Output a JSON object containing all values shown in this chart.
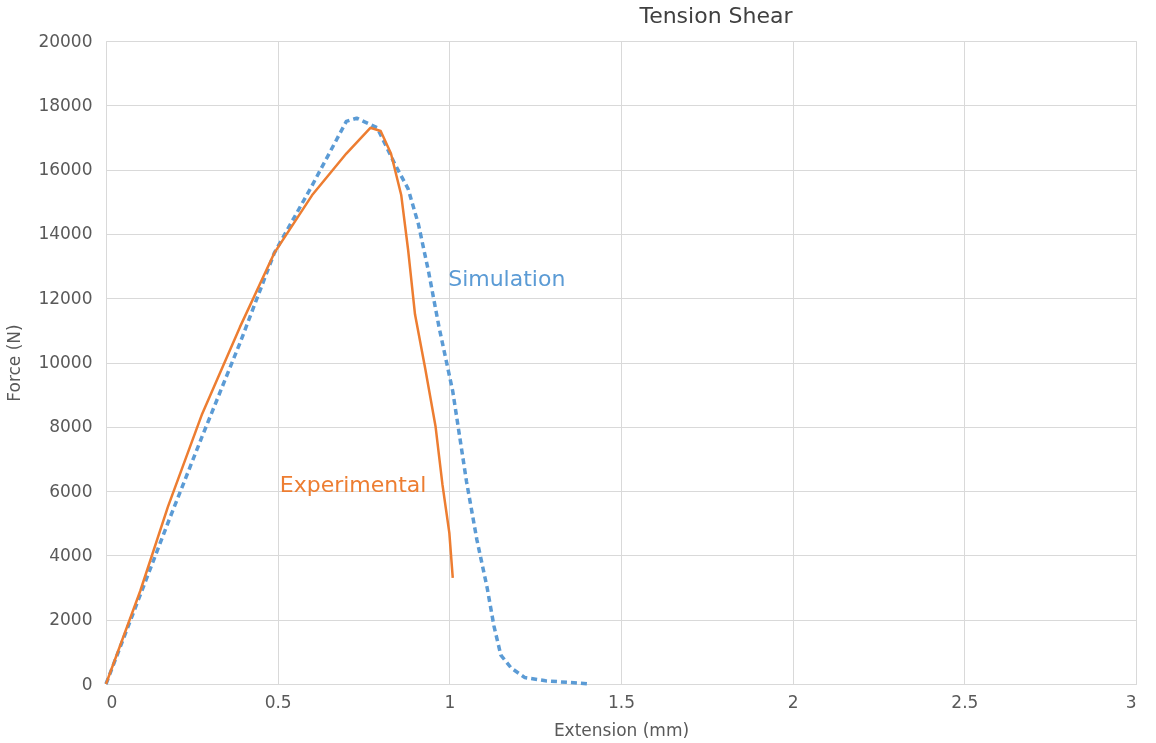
{
  "chart_data": {
    "type": "line",
    "title": "Tension Shear",
    "xlabel": "Extension (mm)",
    "ylabel": "Force (N)",
    "xlim": [
      0,
      3
    ],
    "xticks": [
      0,
      0.5,
      1,
      1.5,
      2,
      2.5,
      3
    ],
    "ylim": [
      0,
      20000
    ],
    "yticks": [
      0,
      2000,
      4000,
      6000,
      8000,
      10000,
      12000,
      14000,
      16000,
      18000,
      20000
    ],
    "grid": true,
    "series": [
      {
        "color": "#5b9bd5",
        "line_style": "dashed",
        "x": [
          0,
          0.09,
          0.18,
          0.28,
          0.39,
          0.49,
          0.6,
          0.7,
          0.73,
          0.79,
          0.84,
          0.88,
          0.91,
          0.94,
          0.97,
          1.01,
          1.05,
          1.08,
          1.11,
          1.13,
          1.15,
          1.18,
          1.22,
          1.28,
          1.41
        ],
        "values": [
          0,
          2500,
          5000,
          7700,
          10600,
          13400,
          15500,
          17500,
          17600,
          17300,
          16200,
          15400,
          14300,
          12800,
          11100,
          9100,
          6300,
          4500,
          3000,
          1800,
          900,
          500,
          200,
          100,
          0
        ]
      },
      {
        "color": "#ed7d31",
        "line_style": "solid",
        "x": [
          0,
          0.1,
          0.18,
          0.28,
          0.39,
          0.49,
          0.6,
          0.7,
          0.77,
          0.8,
          0.83,
          0.86,
          0.88,
          0.9,
          0.93,
          0.96,
          0.98,
          1.0,
          1.01
        ],
        "values": [
          0,
          2900,
          5500,
          8400,
          11100,
          13400,
          15200,
          16500,
          17300,
          17200,
          16500,
          15200,
          13500,
          11500,
          9800,
          8000,
          6200,
          4700,
          3300
        ]
      }
    ],
    "annotations": [
      {
        "text": "Simulation",
        "x": 0.95,
        "y": 12600
      },
      {
        "text": "Experimental",
        "x": 0.98,
        "y": 6200
      }
    ]
  }
}
